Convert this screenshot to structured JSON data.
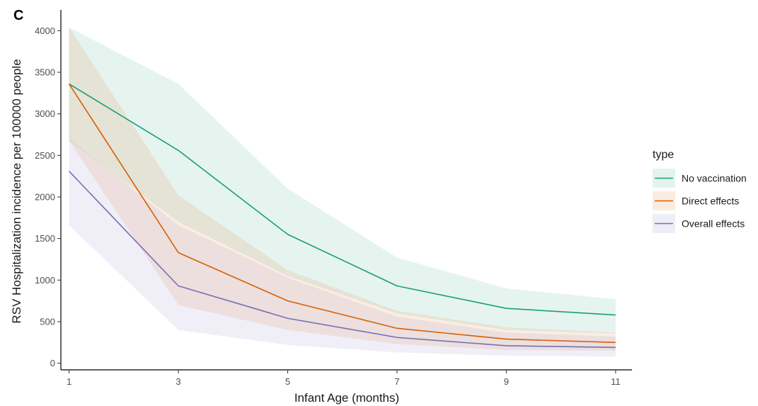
{
  "chart_data": {
    "type": "line",
    "panel_label": "C",
    "title": "",
    "xlabel": "Infant Age (months)",
    "ylabel": "RSV Hospitalization incidence per 100000 people",
    "x": [
      1,
      3,
      5,
      7,
      9,
      11
    ],
    "xlim": [
      0.85,
      11.3
    ],
    "ylim": [
      -80,
      4250
    ],
    "x_ticks": [
      1,
      3,
      5,
      7,
      9,
      11
    ],
    "y_ticks": [
      0,
      500,
      1000,
      1500,
      2000,
      2500,
      3000,
      3500,
      4000
    ],
    "grid": false,
    "legend": {
      "title": "type",
      "position": "right"
    },
    "series": [
      {
        "name": "No vaccination",
        "color": "#1b9e77",
        "values": [
          3360,
          2560,
          1550,
          930,
          660,
          580
        ],
        "lower": [
          2680,
          1700,
          1050,
          600,
          400,
          360
        ],
        "upper": [
          4040,
          3360,
          2100,
          1270,
          900,
          770
        ]
      },
      {
        "name": "Direct effects",
        "color": "#d95f02",
        "values": [
          3360,
          1330,
          750,
          420,
          290,
          250
        ],
        "lower": [
          2680,
          700,
          400,
          230,
          160,
          150
        ],
        "upper": [
          4040,
          2020,
          1120,
          630,
          430,
          370
        ]
      },
      {
        "name": "Overall effects",
        "color": "#7570b3",
        "values": [
          2310,
          930,
          540,
          310,
          210,
          190
        ],
        "lower": [
          1660,
          400,
          220,
          130,
          90,
          80
        ],
        "upper": [
          2700,
          1660,
          1030,
          560,
          370,
          320
        ]
      }
    ]
  }
}
